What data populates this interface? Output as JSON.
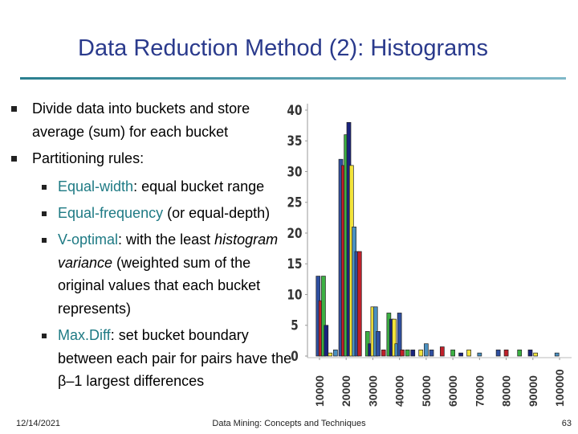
{
  "header": {
    "title": "Data Reduction Method (2): Histograms"
  },
  "bullets": [
    {
      "parts": [
        {
          "text": "Divide data into buckets and store average (sum) for each bucket"
        }
      ]
    },
    {
      "parts": [
        {
          "text": "Partitioning rules:"
        }
      ],
      "sub": [
        {
          "parts": [
            {
              "text": "Equal-width",
              "accent": true
            },
            {
              "text": ": equal bucket range"
            }
          ]
        },
        {
          "parts": [
            {
              "text": "Equal-frequency",
              "accent": true
            },
            {
              "text": " (or equal-depth)"
            }
          ]
        },
        {
          "parts": [
            {
              "text": "V-optimal",
              "accent": true
            },
            {
              "text": ": with the least "
            },
            {
              "text": "histogram variance",
              "italic": true
            },
            {
              "text": " (weighted sum of the original values that each bucket represents)"
            }
          ]
        },
        {
          "parts": [
            {
              "text": "Max.Diff",
              "accent": true
            },
            {
              "text": ": set bucket boundary between each pair for pairs have the β–1 largest differences"
            }
          ]
        }
      ]
    }
  ],
  "chart": {
    "type": "bar",
    "x": [
      9500,
      10500,
      11500,
      12500,
      14000,
      16000,
      18000,
      19000,
      20000,
      21000,
      22000,
      23000,
      24000,
      25000,
      28000,
      29000,
      30000,
      31000,
      32000,
      34000,
      36000,
      37000,
      38000,
      39000,
      40000,
      41000,
      43000,
      45000,
      48000,
      50000,
      52000,
      56000,
      60000,
      63000,
      66000,
      70000,
      77000,
      80000,
      85000,
      89000,
      91000,
      99000
    ],
    "values": [
      13,
      9,
      13,
      5,
      0.5,
      1,
      32,
      31,
      36,
      38,
      31,
      21,
      17,
      17,
      4,
      2,
      8,
      8,
      4,
      1,
      7,
      6,
      6,
      2,
      7,
      1,
      1,
      1,
      1,
      2,
      1,
      1.5,
      1,
      0.5,
      1,
      0.5,
      1,
      1,
      1,
      1,
      0.5,
      0.5
    ],
    "colors": [
      "#2f4fa0",
      "#c0202a",
      "#3cb043",
      "#1a237e",
      "#f2e33a",
      "#4a90c0"
    ],
    "xlim": [
      5500,
      104500
    ],
    "ylim": [
      0,
      40
    ],
    "xticks": [
      10000,
      20000,
      30000,
      40000,
      50000,
      60000,
      70000,
      80000,
      90000,
      100000
    ],
    "yticks": [
      0,
      5,
      10,
      15,
      20,
      25,
      30,
      35,
      40
    ]
  },
  "footer": {
    "date": "12/14/2021",
    "center": "Data Mining: Concepts and Techniques",
    "page": "63"
  }
}
